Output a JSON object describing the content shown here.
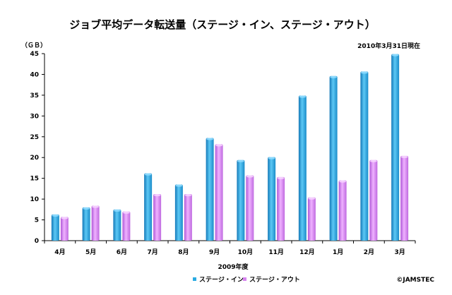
{
  "chart_data": {
    "type": "bar",
    "title": "ジョブ平均データ転送量（ステージ・イン、ステージ・アウト）",
    "unit_label": "（ＧＢ）",
    "date_note": "2010年3月31日現在",
    "xlabel": "2009年度",
    "credit": "©JAMSTEC",
    "categories": [
      "4月",
      "5月",
      "6月",
      "7月",
      "8月",
      "9月",
      "10月",
      "11月",
      "12月",
      "1月",
      "2月",
      "3月"
    ],
    "ylim": [
      0,
      45
    ],
    "yticks": [
      0,
      5,
      10,
      15,
      20,
      25,
      30,
      35,
      40,
      45
    ],
    "grid": false,
    "legend_position": "bottom",
    "series": [
      {
        "name": "ステージ・イン",
        "color": "#29abe2",
        "values": [
          6.3,
          8.0,
          7.5,
          16.2,
          13.5,
          24.7,
          19.4,
          20.1,
          34.9,
          39.6,
          40.7,
          44.9
        ]
      },
      {
        "name": "ステージ・アウト",
        "color": "#d783f0",
        "values": [
          5.7,
          8.4,
          7.0,
          11.2,
          11.2,
          23.2,
          15.7,
          15.3,
          10.4,
          14.5,
          19.4,
          20.4
        ]
      }
    ]
  }
}
